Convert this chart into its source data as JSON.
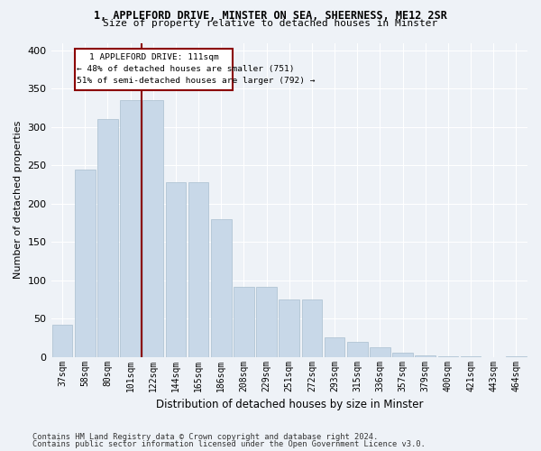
{
  "title1": "1, APPLEFORD DRIVE, MINSTER ON SEA, SHEERNESS, ME12 2SR",
  "title2": "Size of property relative to detached houses in Minster",
  "xlabel": "Distribution of detached houses by size in Minster",
  "ylabel": "Number of detached properties",
  "bar_color": "#c8d8e8",
  "bar_edge_color": "#a8bece",
  "vline_color": "#8b0000",
  "vline_index": 4,
  "annotation_line1": "1 APPLEFORD DRIVE: 111sqm",
  "annotation_line2": "← 48% of detached houses are smaller (751)",
  "annotation_line3": "51% of semi-detached houses are larger (792) →",
  "annotation_box_color": "#8b0000",
  "categories": [
    "37sqm",
    "58sqm",
    "80sqm",
    "101sqm",
    "122sqm",
    "144sqm",
    "165sqm",
    "186sqm",
    "208sqm",
    "229sqm",
    "251sqm",
    "272sqm",
    "293sqm",
    "315sqm",
    "336sqm",
    "357sqm",
    "379sqm",
    "400sqm",
    "421sqm",
    "443sqm",
    "464sqm"
  ],
  "values": [
    42,
    245,
    311,
    335,
    335,
    228,
    228,
    180,
    92,
    92,
    75,
    75,
    25,
    20,
    13,
    6,
    2,
    1,
    1,
    0,
    1
  ],
  "ylim": [
    0,
    410
  ],
  "yticks": [
    0,
    50,
    100,
    150,
    200,
    250,
    300,
    350,
    400
  ],
  "footer1": "Contains HM Land Registry data © Crown copyright and database right 2024.",
  "footer2": "Contains public sector information licensed under the Open Government Licence v3.0.",
  "bg_color": "#eef2f7",
  "plot_bg_color": "#eef2f7"
}
